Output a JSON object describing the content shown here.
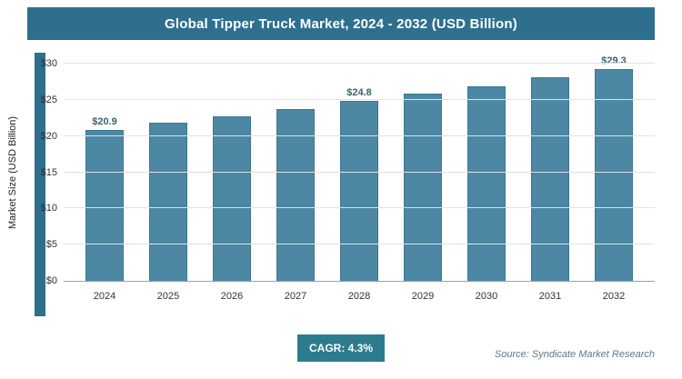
{
  "title": "Global Tipper Truck Market, 2024 - 2032 (USD Billion)",
  "chart_data": {
    "type": "bar",
    "categories": [
      "2024",
      "2025",
      "2026",
      "2027",
      "2028",
      "2029",
      "2030",
      "2031",
      "2032"
    ],
    "values": [
      20.9,
      21.8,
      22.7,
      23.7,
      24.8,
      25.8,
      26.9,
      28.1,
      29.3
    ],
    "labels": [
      "$20.9",
      null,
      null,
      null,
      "$24.8",
      null,
      null,
      null,
      "$29.3"
    ],
    "title": "Global Tipper Truck Market, 2024 - 2032 (USD Billion)",
    "xlabel": "",
    "ylabel": "Market Size (USD Billion)",
    "yticks": [
      "$0",
      "$5",
      "$10",
      "$15",
      "$20",
      "$25",
      "$30"
    ],
    "ylim": [
      0,
      30
    ],
    "grid": "horizontal",
    "legend": "none"
  },
  "footer": {
    "cagr_label": "CAGR: 4.3%",
    "source": "Source: Syndicate Market Research"
  },
  "colors": {
    "header_bg": "#2e6f8e",
    "bar_fill": "#4c87a4",
    "bar_border": "#3e768f",
    "badge_bg": "#2d7b8e",
    "source_text": "#5f7886"
  }
}
